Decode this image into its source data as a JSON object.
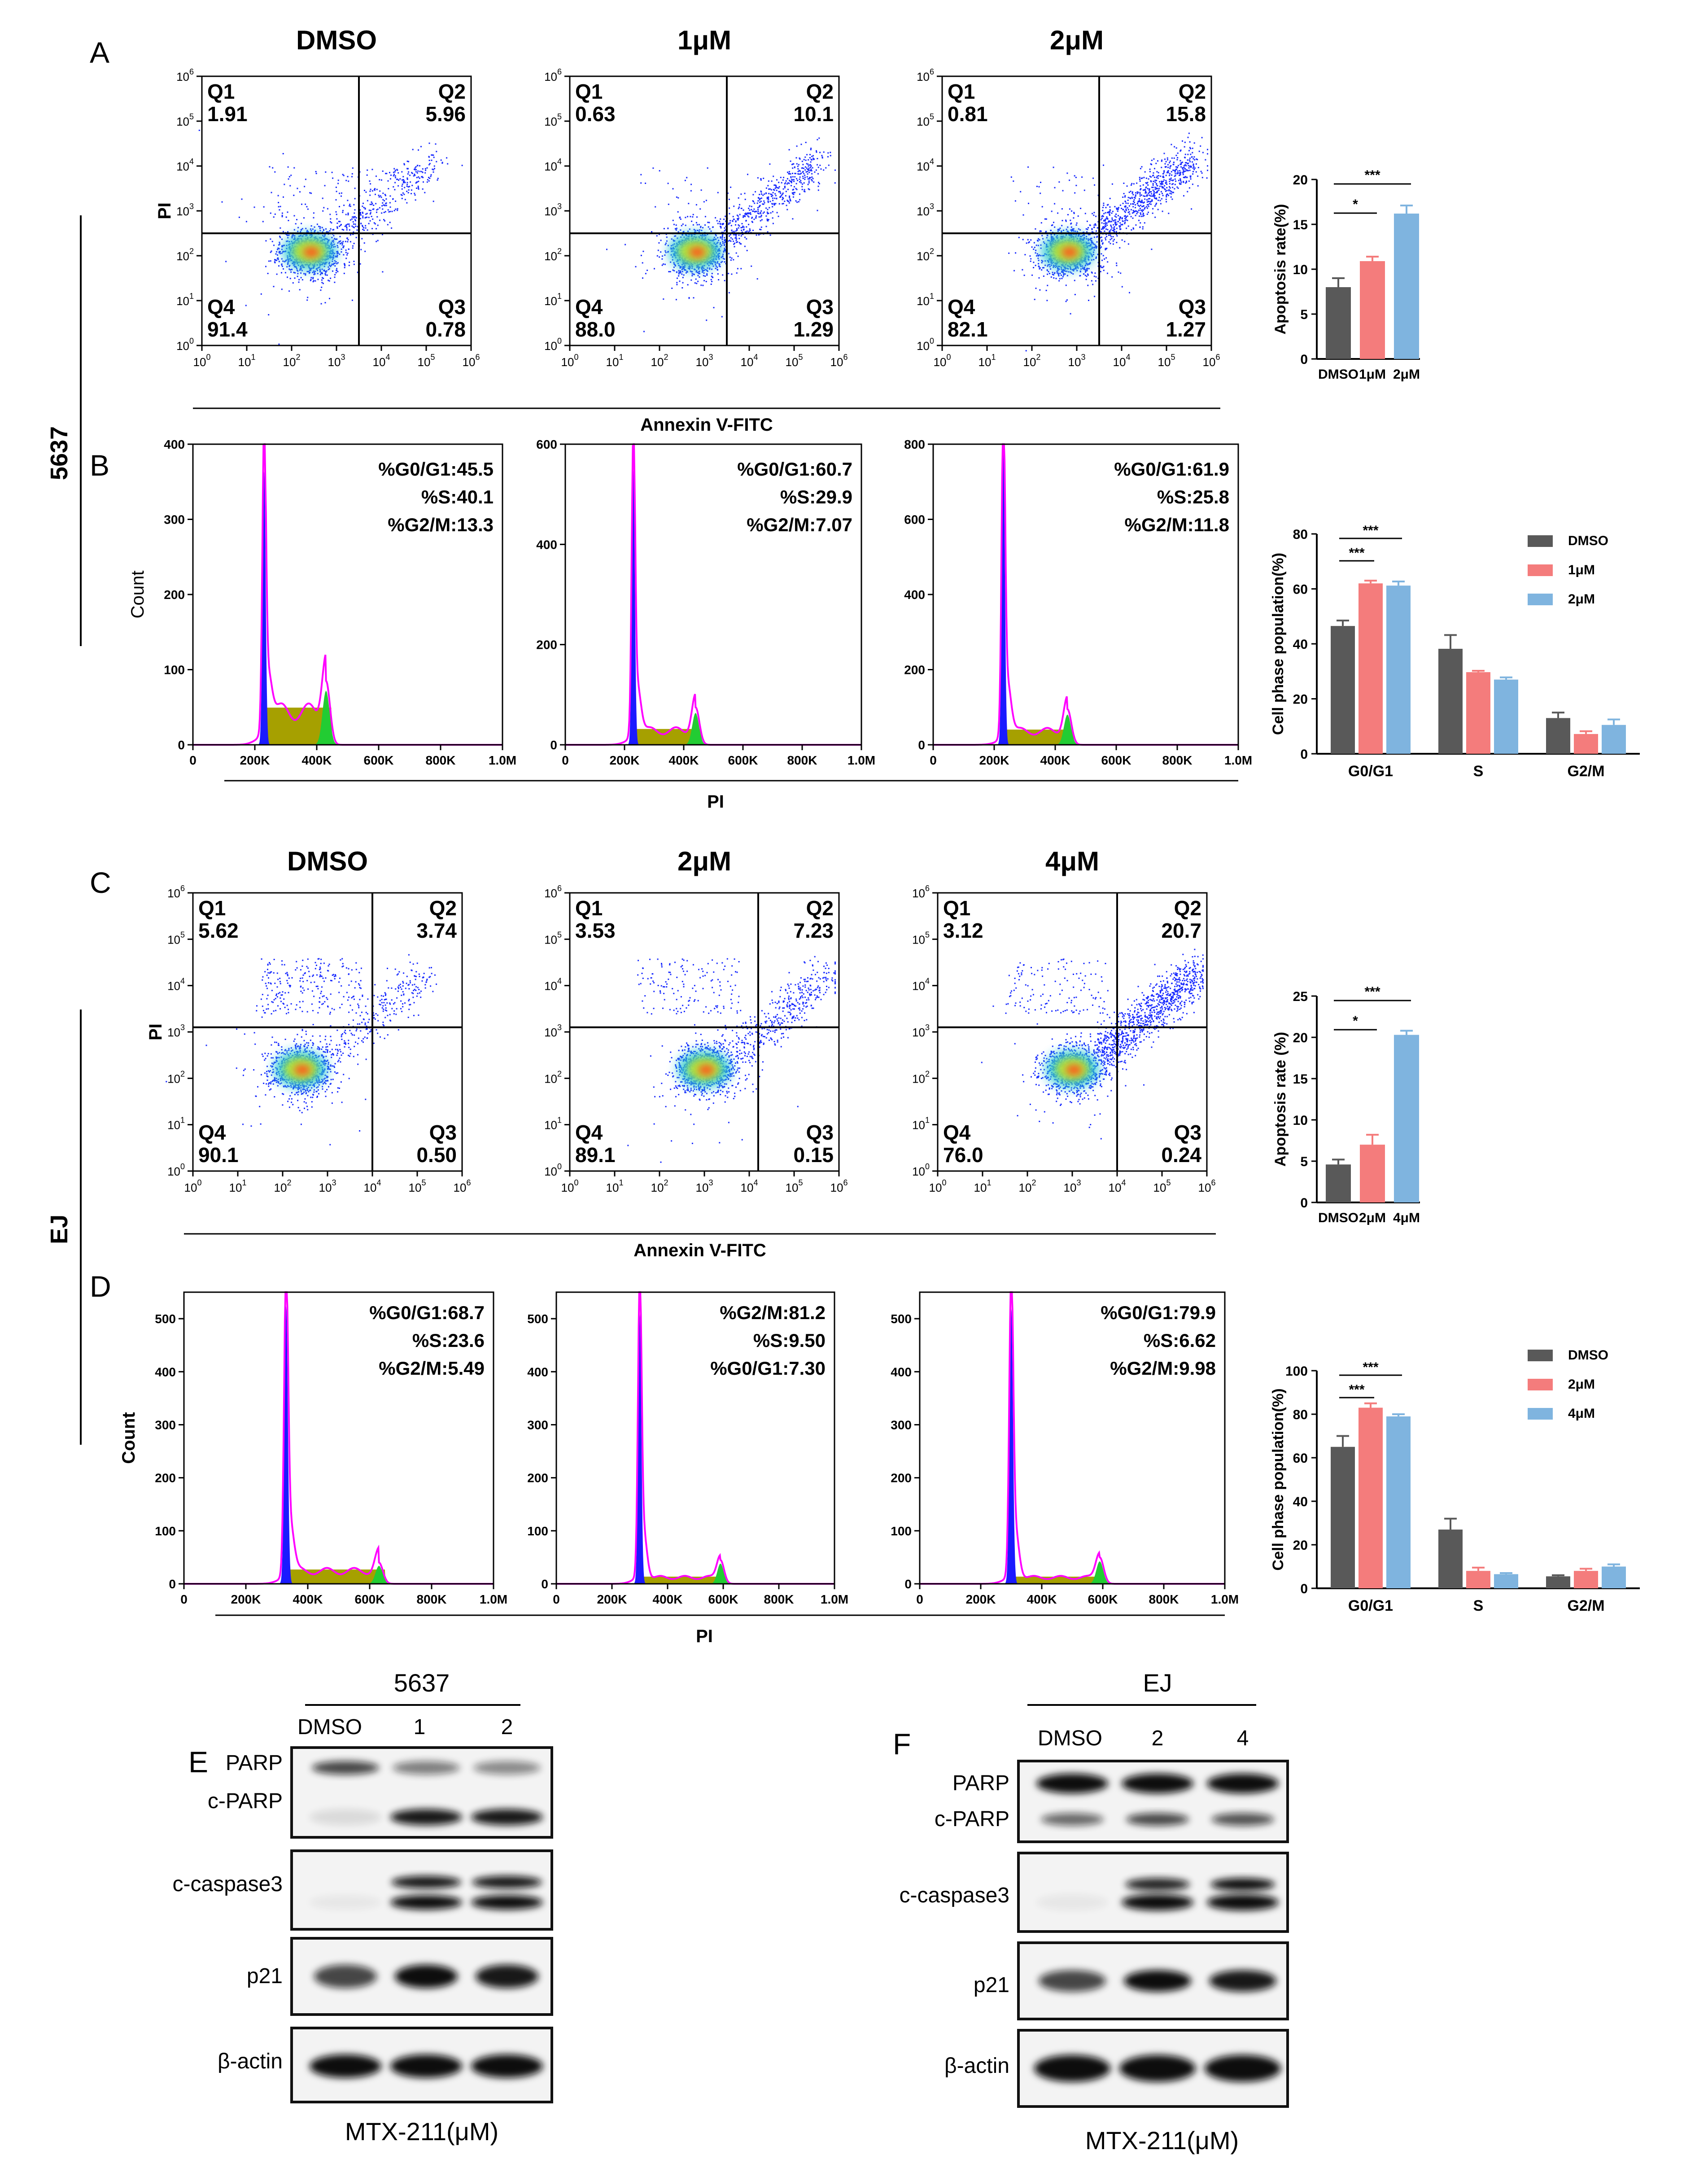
{
  "panels": {
    "A": "A",
    "B": "B",
    "C": "C",
    "D": "D",
    "E": "E",
    "F": "F"
  },
  "cell_lines": {
    "top": "5637",
    "bottom": "EJ"
  },
  "chart_data": [
    {
      "type": "scatter",
      "id": "A",
      "cell_line": "5637",
      "xlabel": "Annexin V-FITC",
      "ylabel": "PI",
      "xticks": [
        "10^0",
        "10^1",
        "10^2",
        "10^3",
        "10^4",
        "10^5",
        "10^6"
      ],
      "yticks": [
        "10^0",
        "10^1",
        "10^2",
        "10^3",
        "10^4",
        "10^5",
        "10^6"
      ],
      "plots": [
        {
          "title": "DMSO",
          "Q1": "1.91",
          "Q2": "5.96",
          "Q3": "0.78",
          "Q4": "91.4",
          "qx": 3.5,
          "qy": 2.5,
          "cluster": [
            2.4,
            2.1
          ]
        },
        {
          "title": "1μM",
          "Q1": "0.63",
          "Q2": "10.1",
          "Q3": "1.29",
          "Q4": "88.0",
          "qx": 3.5,
          "qy": 2.5,
          "cluster": [
            2.8,
            2.1
          ]
        },
        {
          "title": "2μM",
          "Q1": "0.81",
          "Q2": "15.8",
          "Q3": "1.27",
          "Q4": "82.1",
          "qx": 3.5,
          "qy": 2.5,
          "cluster": [
            2.8,
            2.1
          ]
        }
      ]
    },
    {
      "type": "bar",
      "id": "A-bar",
      "ylabel": "Apoptosis rate(%)",
      "ylim": [
        0,
        20
      ],
      "yticks": [
        "0",
        "5",
        "10",
        "15",
        "20"
      ],
      "categories": [
        "DMSO",
        "1μM",
        "2μM"
      ],
      "values": [
        8.0,
        10.9,
        16.2
      ],
      "errors": [
        1.0,
        0.5,
        0.9
      ],
      "colors": [
        "#595959",
        "#f47c7c",
        "#7fb4df"
      ],
      "significance": [
        {
          "from": 0,
          "to": 1,
          "label": "*"
        },
        {
          "from": 0,
          "to": 2,
          "label": "***"
        }
      ]
    },
    {
      "type": "area",
      "id": "B",
      "ylabel": "Count",
      "xlabel": "PI",
      "xticks": [
        "0",
        "200K",
        "400K",
        "600K",
        "800K",
        "1.0M"
      ],
      "plots": [
        {
          "G0G1": "%G0/G1:45.5",
          "S": "%S:40.1",
          "G2M": "%G2/M:13.3",
          "ymax": 400,
          "yticks": [
            "0",
            "100",
            "200",
            "300",
            "400"
          ],
          "peak": 375,
          "g1pos": 230,
          "g2pos": 430,
          "sLevel": 55,
          "g2height": 85
        },
        {
          "G0G1": "%G0/G1:60.7",
          "S": "%S:29.9",
          "G2M": "%G2/M:7.07",
          "ymax": 600,
          "yticks": [
            "0",
            "200",
            "400",
            "600"
          ],
          "peak": 565,
          "g1pos": 230,
          "g2pos": 440,
          "sLevel": 35,
          "g2height": 75
        },
        {
          "G0G1": "%G0/G1:61.9",
          "S": "%S:25.8",
          "G2M": "%G2/M:11.8",
          "ymax": 800,
          "yticks": [
            "0",
            "200",
            "400",
            "600",
            "800"
          ],
          "peak": 815,
          "g1pos": 230,
          "g2pos": 440,
          "sLevel": 45,
          "g2height": 95
        }
      ]
    },
    {
      "type": "bar",
      "id": "B-bar",
      "ylabel": "Cell phase population(%)",
      "ylim": [
        0,
        80
      ],
      "yticks": [
        "0",
        "20",
        "40",
        "60",
        "80"
      ],
      "categories": [
        "G0/G1",
        "S",
        "G2/M"
      ],
      "series": [
        {
          "name": "DMSO",
          "color": "#595959",
          "values": [
            46.5,
            38.2,
            13.0
          ],
          "errors": [
            2.0,
            5.0,
            2.0
          ]
        },
        {
          "name": "1μM",
          "color": "#f47c7c",
          "values": [
            62.0,
            29.7,
            7.2
          ],
          "errors": [
            1.0,
            0.5,
            1.0
          ]
        },
        {
          "name": "2μM",
          "color": "#7fb4df",
          "values": [
            61.2,
            27.0,
            10.5
          ],
          "errors": [
            1.5,
            0.8,
            2.0
          ]
        }
      ],
      "significance": [
        {
          "from": 0,
          "to": 1,
          "label": "***"
        },
        {
          "from": 0,
          "to": 2,
          "label": "***"
        }
      ]
    },
    {
      "type": "scatter",
      "id": "C",
      "cell_line": "EJ",
      "xlabel": "Annexin V-FITC",
      "ylabel": "PI",
      "xticks": [
        "10^0",
        "10^1",
        "10^2",
        "10^3",
        "10^4",
        "10^5",
        "10^6"
      ],
      "yticks": [
        "10^0",
        "10^1",
        "10^2",
        "10^3",
        "10^4",
        "10^5",
        "10^6"
      ],
      "plots": [
        {
          "title": "DMSO",
          "Q1": "5.62",
          "Q2": "3.74",
          "Q3": "0.50",
          "Q4": "90.1",
          "qx": 4.0,
          "qy": 3.1,
          "cluster": [
            2.4,
            2.2
          ]
        },
        {
          "title": "2μM",
          "Q1": "3.53",
          "Q2": "7.23",
          "Q3": "0.15",
          "Q4": "89.1",
          "qx": 4.2,
          "qy": 3.1,
          "cluster": [
            3.0,
            2.2
          ]
        },
        {
          "title": "4μM",
          "Q1": "3.12",
          "Q2": "20.7",
          "Q3": "0.24",
          "Q4": "76.0",
          "qx": 4.0,
          "qy": 3.1,
          "cluster": [
            3.0,
            2.2
          ]
        }
      ]
    },
    {
      "type": "bar",
      "id": "C-bar",
      "ylabel": "Apoptosis rate (%)",
      "ylim": [
        0,
        25
      ],
      "yticks": [
        "0",
        "5",
        "10",
        "15",
        "20",
        "25"
      ],
      "categories": [
        "DMSO",
        "2μM",
        "4μM"
      ],
      "values": [
        4.6,
        7.0,
        20.3
      ],
      "errors": [
        0.6,
        1.2,
        0.5
      ],
      "colors": [
        "#595959",
        "#f47c7c",
        "#7fb4df"
      ],
      "significance": [
        {
          "from": 0,
          "to": 1,
          "label": "*"
        },
        {
          "from": 0,
          "to": 2,
          "label": "***"
        }
      ]
    },
    {
      "type": "area",
      "id": "D",
      "ylabel": "Count",
      "xlabel": "PI",
      "xticks": [
        "0",
        "200K",
        "400K",
        "600K",
        "800K",
        "1.0M"
      ],
      "plots": [
        {
          "line1": "%G0/G1:68.7",
          "line2": "%S:23.6",
          "line3": "%G2/M:5.49",
          "ymax": 550,
          "yticks": [
            "0",
            "100",
            "200",
            "300",
            "400",
            "500"
          ],
          "peak": 540,
          "g1pos": 330,
          "g2pos": 630,
          "sLevel": 30,
          "g2height": 40
        },
        {
          "line1": "%G2/M:81.2",
          "line2": "%S:9.50",
          "line3": "%G0/G1:7.30",
          "ymax": 550,
          "yticks": [
            "0",
            "100",
            "200",
            "300",
            "400",
            "500"
          ],
          "peak": 525,
          "g1pos": 300,
          "g2pos": 590,
          "sLevel": 15,
          "g2height": 45
        },
        {
          "line1": "%G0/G1:79.9",
          "line2": "%S:6.62",
          "line3": "%G2/M:9.98",
          "ymax": 550,
          "yticks": [
            "0",
            "100",
            "200",
            "300",
            "400",
            "500"
          ],
          "peak": 535,
          "g1pos": 300,
          "g2pos": 590,
          "sLevel": 15,
          "g2height": 50
        }
      ]
    },
    {
      "type": "bar",
      "id": "D-bar",
      "ylabel": "Cell phase population(%)",
      "ylim": [
        0,
        100
      ],
      "yticks": [
        "0",
        "20",
        "40",
        "60",
        "80",
        "100"
      ],
      "categories": [
        "G0/G1",
        "S",
        "G2/M"
      ],
      "series": [
        {
          "name": "DMSO",
          "color": "#595959",
          "values": [
            65.0,
            27.0,
            5.5
          ],
          "errors": [
            5.0,
            5.0,
            0.5
          ]
        },
        {
          "name": "2μM",
          "color": "#f47c7c",
          "values": [
            83.0,
            8.0,
            8.0
          ],
          "errors": [
            2.0,
            1.5,
            1.0
          ]
        },
        {
          "name": "4μM",
          "color": "#7fb4df",
          "values": [
            79.0,
            6.5,
            10.0
          ],
          "errors": [
            1.0,
            0.5,
            1.0
          ]
        }
      ],
      "significance": [
        {
          "from": 0,
          "to": 1,
          "label": "***"
        },
        {
          "from": 0,
          "to": 2,
          "label": "***"
        }
      ]
    }
  ],
  "western": {
    "E": {
      "title": "5637",
      "lanes": [
        "DMSO",
        "1",
        "2"
      ],
      "footer": "MTX-211(μM)",
      "labels": {
        "parp": "PARP",
        "cparp": "c-PARP",
        "casp": "c-caspase3",
        "p21": "p21",
        "actin": "β-actin"
      }
    },
    "F": {
      "title": "EJ",
      "lanes": [
        "DMSO",
        "2",
        "4"
      ],
      "footer": "MTX-211(μM)",
      "labels": {
        "parp": "PARP",
        "cparp": "c-PARP",
        "casp": "c-caspase3",
        "p21": "p21",
        "actin": "β-actin"
      }
    }
  }
}
